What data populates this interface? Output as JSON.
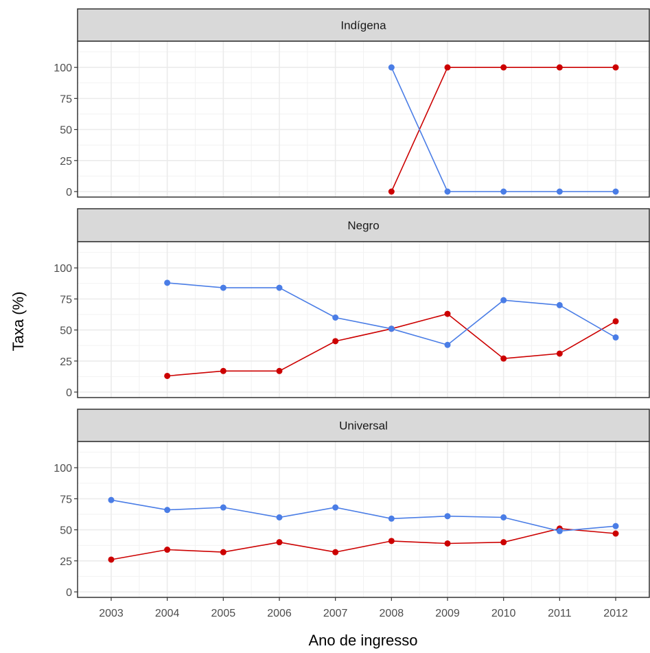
{
  "chart_data": {
    "type": "line",
    "xlabel": "Ano de ingresso",
    "ylabel": "Taxa (%)",
    "x": [
      2003,
      2004,
      2005,
      2006,
      2007,
      2008,
      2009,
      2010,
      2011,
      2012
    ],
    "x_tick_labels": [
      "2003",
      "2004",
      "2005",
      "2006",
      "2007",
      "2008",
      "2009",
      "2010",
      "2011",
      "2012"
    ],
    "y_tick_labels": [
      "0",
      "25",
      "50",
      "75",
      "100"
    ],
    "ylim": [
      0,
      120
    ],
    "xlim": [
      2002.4,
      2012.6
    ],
    "grid": true,
    "legend": "none",
    "series_colors": [
      "#cc0000",
      "#4a7de6"
    ],
    "panels": [
      {
        "strip": "Indígena",
        "series": [
          {
            "color": "#cc0000",
            "values": [
              null,
              null,
              null,
              null,
              null,
              0,
              100,
              100,
              100,
              100
            ]
          },
          {
            "color": "#4a7de6",
            "values": [
              null,
              null,
              null,
              null,
              null,
              100,
              0,
              0,
              0,
              0
            ]
          }
        ]
      },
      {
        "strip": "Negro",
        "series": [
          {
            "color": "#cc0000",
            "values": [
              null,
              13,
              17,
              17,
              41,
              51,
              63,
              27,
              31,
              57
            ]
          },
          {
            "color": "#4a7de6",
            "values": [
              null,
              88,
              84,
              84,
              60,
              51,
              38,
              74,
              70,
              44
            ]
          }
        ]
      },
      {
        "strip": "Universal",
        "series": [
          {
            "color": "#cc0000",
            "values": [
              26,
              34,
              32,
              40,
              32,
              41,
              39,
              40,
              51,
              47
            ]
          },
          {
            "color": "#4a7de6",
            "values": [
              74,
              66,
              68,
              60,
              68,
              59,
              61,
              60,
              49,
              53
            ]
          }
        ]
      }
    ]
  }
}
